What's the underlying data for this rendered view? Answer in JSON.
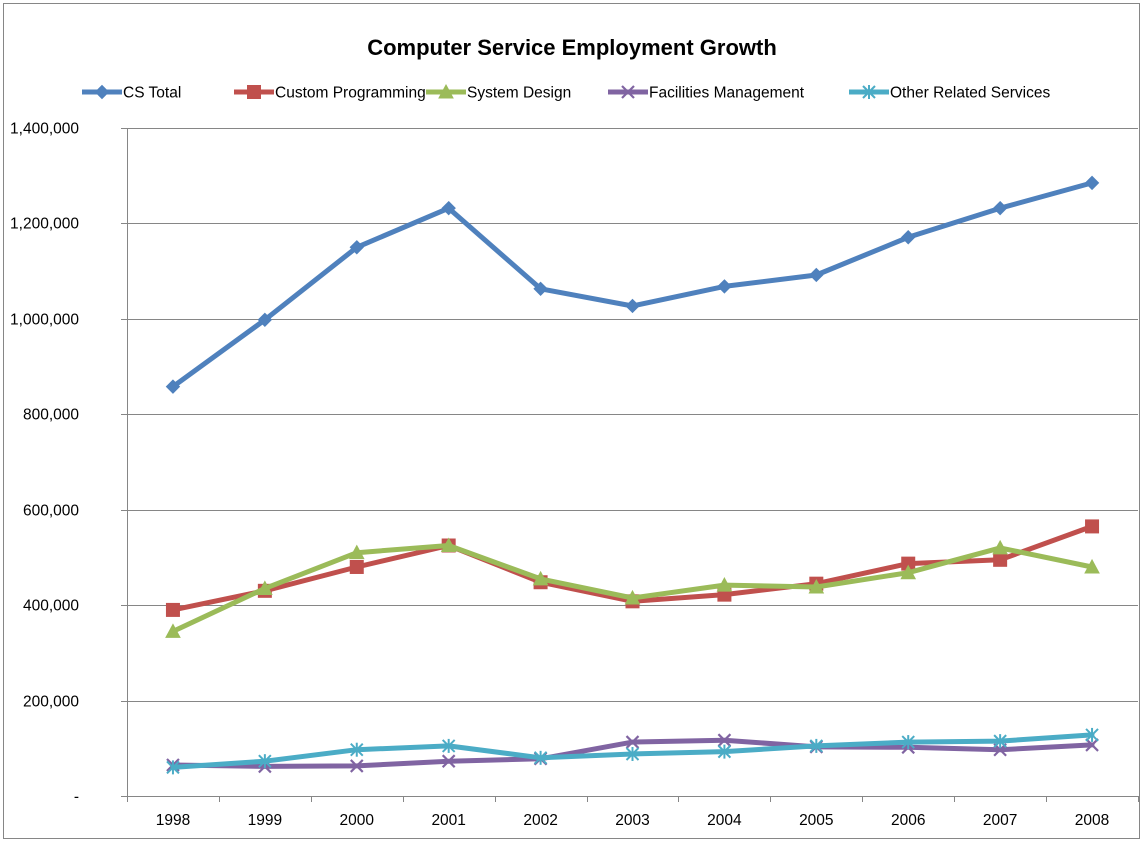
{
  "chart_data": {
    "type": "line",
    "title": "Computer Service Employment Growth",
    "xlabel": "",
    "ylabel": "",
    "categories": [
      "1998",
      "1999",
      "2000",
      "2001",
      "2002",
      "2003",
      "2004",
      "2005",
      "2006",
      "2007",
      "2008"
    ],
    "ylim": [
      0,
      1400000
    ],
    "yticks": [
      0,
      200000,
      400000,
      600000,
      800000,
      1000000,
      1200000,
      1400000
    ],
    "ytick_labels": [
      "-",
      "200,000",
      "400,000",
      "600,000",
      "800,000",
      "1,000,000",
      "1,200,000",
      "1,400,000"
    ],
    "grid": "horizontal major gridlines",
    "legend_position": "top",
    "series": [
      {
        "name": "CS Total",
        "color": "#4F81BD",
        "marker": "diamond",
        "values": [
          858000,
          998000,
          1150000,
          1232000,
          1063000,
          1027000,
          1068000,
          1092000,
          1171000,
          1232000,
          1285000
        ]
      },
      {
        "name": "Custom Programming",
        "color": "#C0504D",
        "marker": "square",
        "values": [
          390000,
          430000,
          480000,
          525000,
          448000,
          408000,
          422000,
          445000,
          487000,
          495000,
          565000
        ]
      },
      {
        "name": "System Design",
        "color": "#9BBB59",
        "marker": "triangle",
        "values": [
          345000,
          435000,
          510000,
          525000,
          455000,
          415000,
          442000,
          438000,
          468000,
          520000,
          480000
        ]
      },
      {
        "name": "Facilities Management",
        "color": "#8064A2",
        "marker": "x",
        "values": [
          65000,
          62000,
          63000,
          73000,
          78000,
          113000,
          117000,
          103000,
          102000,
          97000,
          107000
        ]
      },
      {
        "name": "Other Related Services",
        "color": "#4BACC6",
        "marker": "asterisk",
        "values": [
          60000,
          73000,
          97000,
          105000,
          80000,
          88000,
          93000,
          105000,
          113000,
          115000,
          128000
        ]
      }
    ]
  }
}
